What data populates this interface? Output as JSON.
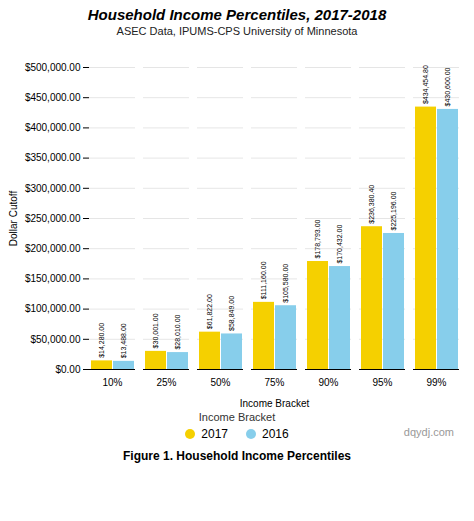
{
  "chart_data": {
    "type": "bar",
    "title": "Household Income Percentiles, 2017-2018",
    "subtitle": "ASEC Data, IPUMS-CPS University of Minnesota",
    "xlabel": "Income Bracket",
    "ylabel": "Dollar Cutoff",
    "categories": [
      "10%",
      "25%",
      "50%",
      "75%",
      "90%",
      "95%",
      "99%"
    ],
    "series": [
      {
        "name": "2017",
        "color": "#F5D000",
        "values": [
          14280.0,
          30001.0,
          61822.0,
          111160.0,
          178793.0,
          236380.4,
          434454.8
        ],
        "value_labels": [
          "$14,280.00",
          "$30,001.00",
          "$61,822.00",
          "$111,160.00",
          "$178,793.00",
          "$236,380.40",
          "$434,454.80"
        ]
      },
      {
        "name": "2016",
        "color": "#87CEEB",
        "values": [
          13488.0,
          28010.0,
          58849.0,
          105580.0,
          170432.0,
          225196.0,
          430600.0
        ],
        "value_labels": [
          "$13,488.00",
          "$28,010.00",
          "$58,849.00",
          "$105,580.00",
          "$170,432.00",
          "$225,196.00",
          "$430,600.00"
        ]
      }
    ],
    "ylim": [
      0,
      500000
    ],
    "yticks": [
      {
        "value": 0,
        "label": "$0.00"
      },
      {
        "value": 50000,
        "label": "$50,000.00"
      },
      {
        "value": 100000,
        "label": "$100,000.00"
      },
      {
        "value": 150000,
        "label": "$150,000.00"
      },
      {
        "value": 200000,
        "label": "$200,000.00"
      },
      {
        "value": 250000,
        "label": "$250,000.00"
      },
      {
        "value": 300000,
        "label": "$300,000.00"
      },
      {
        "value": 350000,
        "label": "$350,000.00"
      },
      {
        "value": 400000,
        "label": "$400,000.00"
      },
      {
        "value": 450000,
        "label": "$450,000.00"
      },
      {
        "value": 500000,
        "label": "$500,000.00"
      }
    ],
    "grid": true,
    "data_labels": true,
    "legend": "bottom",
    "annotations": [
      "dqydj.com"
    ],
    "caption": "Figure 1. Household Income Percentiles"
  }
}
